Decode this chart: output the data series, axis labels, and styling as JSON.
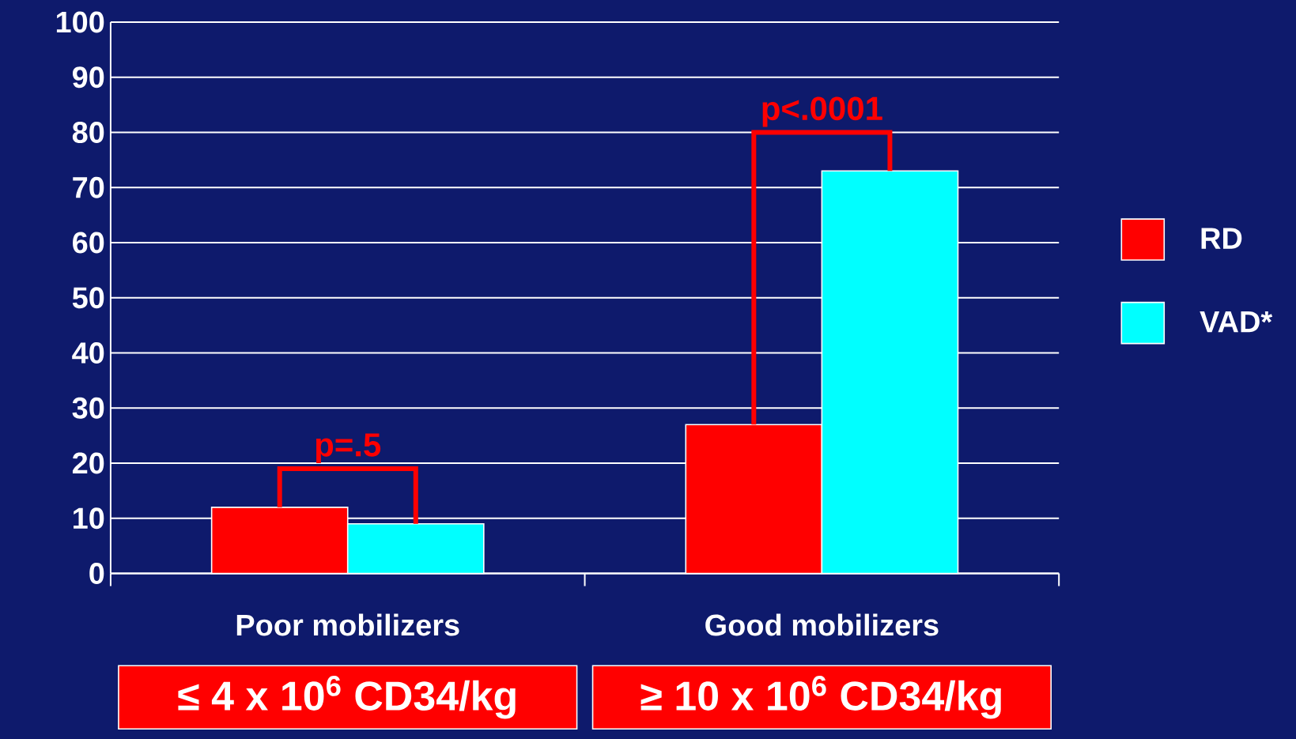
{
  "chart_data": {
    "type": "bar",
    "categories": [
      "Poor mobilizers",
      "Good mobilizers"
    ],
    "series": [
      {
        "name": "RD",
        "color": "#ff0000",
        "values": [
          12,
          27
        ]
      },
      {
        "name": "VAD*",
        "color": "#00ffff",
        "values": [
          9,
          73
        ]
      }
    ],
    "ylim": [
      0,
      100
    ],
    "yticks": [
      0,
      10,
      20,
      30,
      40,
      50,
      60,
      70,
      80,
      90,
      100
    ],
    "grid": "y",
    "legend": "right",
    "annotations": [
      "p=.5",
      "p<.0001",
      "≤ 4 x 10$^{6}$ CD34/kg",
      "≥ 10 x 10$^{6}$ CD34/kg"
    ]
  }
}
